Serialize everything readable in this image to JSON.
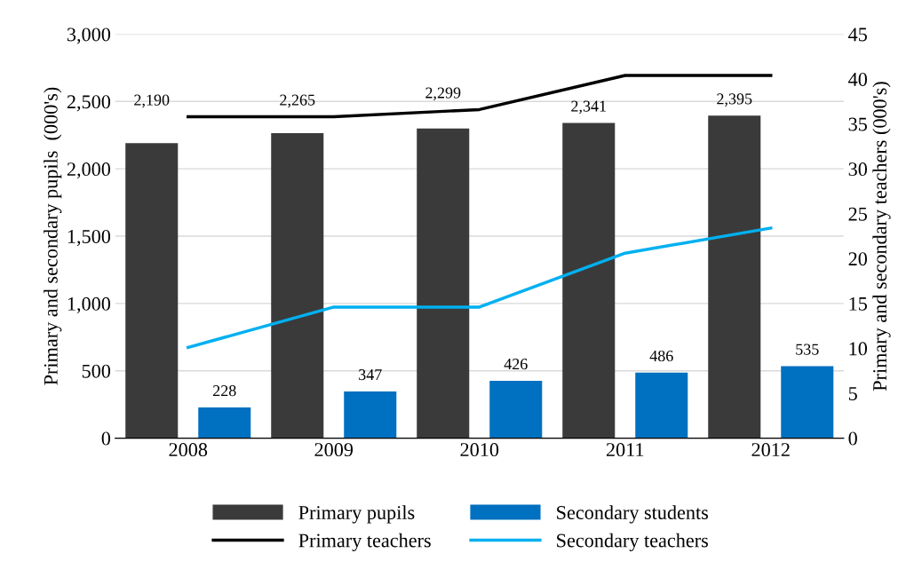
{
  "chart_data": {
    "type": "bar",
    "categories": [
      "2008",
      "2009",
      "2010",
      "2011",
      "2012"
    ],
    "ylabel": "Primary and secondary pupils  (000's)",
    "y2label": "Primary and secondary teachers (000's)",
    "series": [
      {
        "name": "Primary pupils",
        "color": "#3a3a3a",
        "values": [
          2190,
          2265,
          2299,
          2341,
          2395
        ],
        "value_labels": [
          "2,190",
          "2,265",
          "2,299",
          "2,341",
          "2,395"
        ]
      },
      {
        "name": "Secondary students",
        "color": "#0070c0",
        "values": [
          228,
          347,
          426,
          486,
          535
        ],
        "value_labels": [
          "228",
          "347",
          "426",
          "486",
          "535"
        ]
      },
      {
        "name": "Primary teachers",
        "type": "line",
        "axis": "y2",
        "color": "#000000",
        "values": [
          35.8,
          35.8,
          36.6,
          40.4,
          40.4
        ]
      },
      {
        "name": "Secondary teachers",
        "type": "line",
        "axis": "y2",
        "color": "#00b0f0",
        "values": [
          10.1,
          14.6,
          14.6,
          20.6,
          23.4
        ]
      }
    ],
    "ylim": [
      0,
      3000
    ],
    "yticks": [
      0,
      {
        "value": 500,
        "label": "500"
      },
      {
        "value": 1000,
        "label": "1,000"
      },
      {
        "value": 1500,
        "label": "1,500"
      },
      {
        "value": 2000,
        "label": "2,000"
      },
      {
        "value": 2500,
        "label": "2,500"
      },
      {
        "value": 3000,
        "label": "3,000"
      }
    ],
    "y2lim": [
      0,
      45
    ],
    "y2ticks": [
      0,
      5,
      10,
      15,
      20,
      25,
      30,
      35,
      40,
      45
    ],
    "grid": "y",
    "legend": "bottom",
    "marker": "none",
    "line_style": "solid"
  }
}
